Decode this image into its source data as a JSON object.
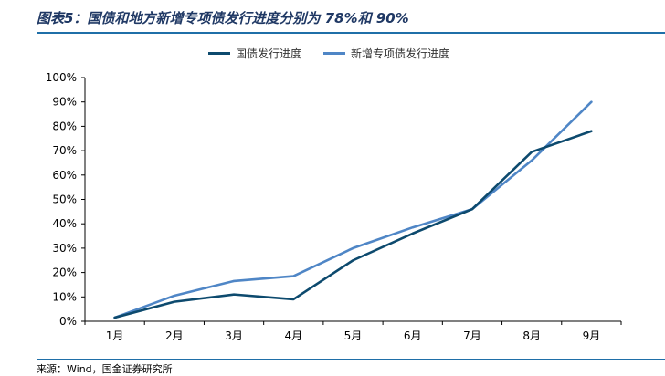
{
  "figure": {
    "title": "图表5：国债和地方新增专项债发行进度分别为 78%和 90%",
    "source": "来源：Wind，国金证券研究所"
  },
  "colors": {
    "title": "#1f3864",
    "rule": "#1f6fa8",
    "series_1": "#0d4a6e",
    "series_2": "#4f86c6"
  },
  "chart_data": {
    "type": "line",
    "categories": [
      "1月",
      "2月",
      "3月",
      "4月",
      "5月",
      "6月",
      "7月",
      "8月",
      "9月"
    ],
    "series": [
      {
        "name": "国债发行进度",
        "values": [
          1.5,
          8,
          11,
          9,
          25,
          36,
          46,
          69.5,
          78
        ]
      },
      {
        "name": "新增专项债发行进度",
        "values": [
          1.5,
          10.5,
          16.5,
          18.5,
          30,
          38.5,
          46,
          66,
          90
        ]
      }
    ],
    "ylim": [
      0,
      100
    ],
    "yticks": [
      "0%",
      "10%",
      "20%",
      "30%",
      "40%",
      "50%",
      "60%",
      "70%",
      "80%",
      "90%",
      "100%"
    ],
    "grid": false,
    "legend_position": "top"
  }
}
